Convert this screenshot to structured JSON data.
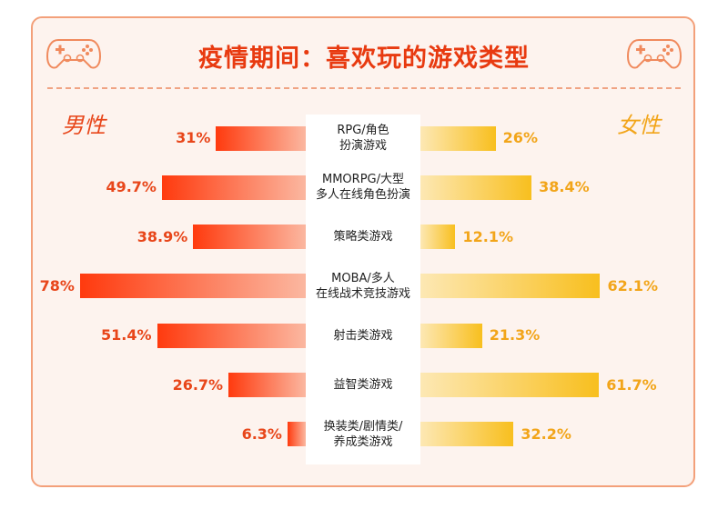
{
  "chart_data": {
    "type": "bar",
    "title": "疫情期间：喜欢玩的游戏类型",
    "categories": [
      [
        "RPG/角色",
        "扮演游戏"
      ],
      [
        "MMORPG/大型",
        "多人在线角色扮演"
      ],
      [
        "策略类游戏"
      ],
      [
        "MOBA/多人",
        "在线战术竞技游戏"
      ],
      [
        "射击类游戏"
      ],
      [
        "益智类游戏"
      ],
      [
        "换装类/剧情类/",
        "养成类游戏"
      ]
    ],
    "series": [
      {
        "name": "男性",
        "values": [
          31,
          49.7,
          38.9,
          78,
          51.4,
          26.7,
          6.3
        ],
        "labels": [
          "31%",
          "49.7%",
          "38.9%",
          "78%",
          "51.4%",
          "26.7%",
          "6.3%"
        ],
        "color": "#e8461a"
      },
      {
        "name": "女性",
        "values": [
          26,
          38.4,
          12.1,
          62.1,
          21.3,
          61.7,
          32.2
        ],
        "labels": [
          "26%",
          "38.4%",
          "12.1%",
          "62.1%",
          "21.3%",
          "61.7%",
          "32.2%"
        ],
        "color": "#f2a51a"
      }
    ],
    "xlim": [
      0,
      100
    ],
    "grid": false,
    "legend": "none"
  },
  "icons": [
    "gamepad-icon",
    "gamepad-icon"
  ]
}
